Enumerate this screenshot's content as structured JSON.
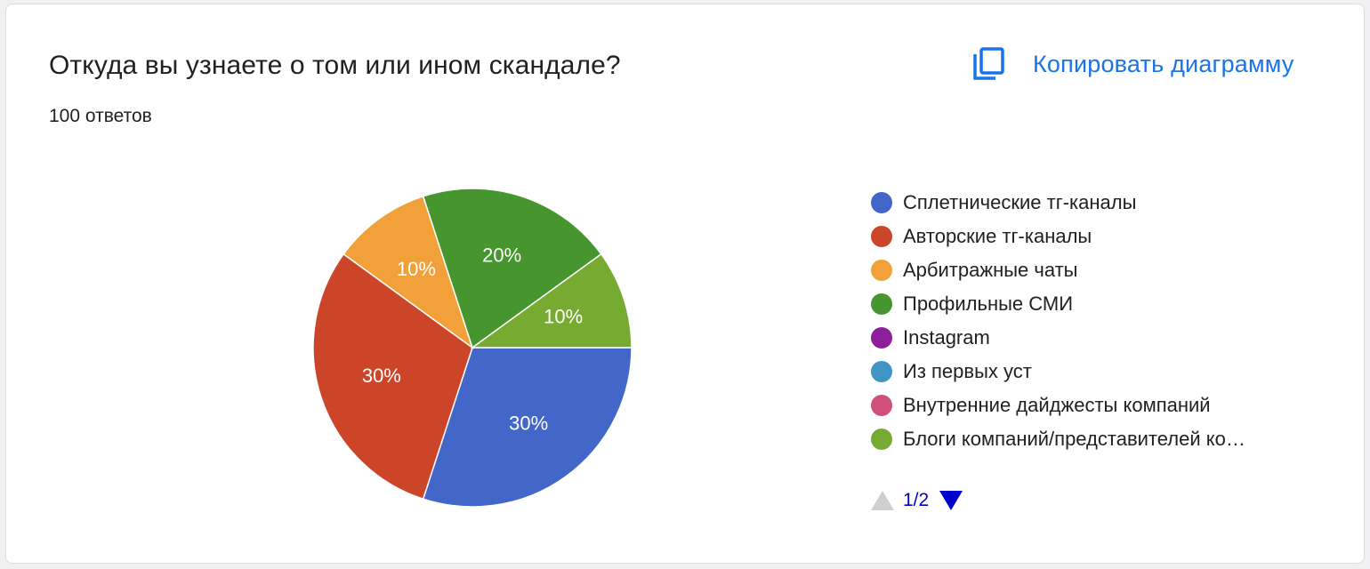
{
  "question": {
    "title": "Откуда вы узнаете о том или ином скандале?",
    "responses": "100 ответов"
  },
  "copy_button": {
    "label": "Копировать диаграмму",
    "icon": "copy-icon",
    "color": "#1a73e8"
  },
  "chart_data": {
    "type": "pie",
    "categories": [
      "Сплетнические тг-каналы",
      "Авторские тг-каналы",
      "Арбитражные чаты",
      "Профильные СМИ",
      "Instagram",
      "Из первых уст",
      "Внутренние дайджесты компаний",
      "Блоги компаний/представителей ко…"
    ],
    "values": [
      30,
      30,
      10,
      20,
      0,
      0,
      0,
      10
    ],
    "labels": [
      "30%",
      "30%",
      "10%",
      "20%",
      "",
      "",
      "",
      "10%"
    ],
    "colors": [
      "#4267c9",
      "#cd4529",
      "#f2a13a",
      "#47952f",
      "#8e1f9b",
      "#4095c4",
      "#d04f7c",
      "#77aa31"
    ],
    "legend_position": "right"
  },
  "legend": {
    "pager_text": "1/2"
  }
}
